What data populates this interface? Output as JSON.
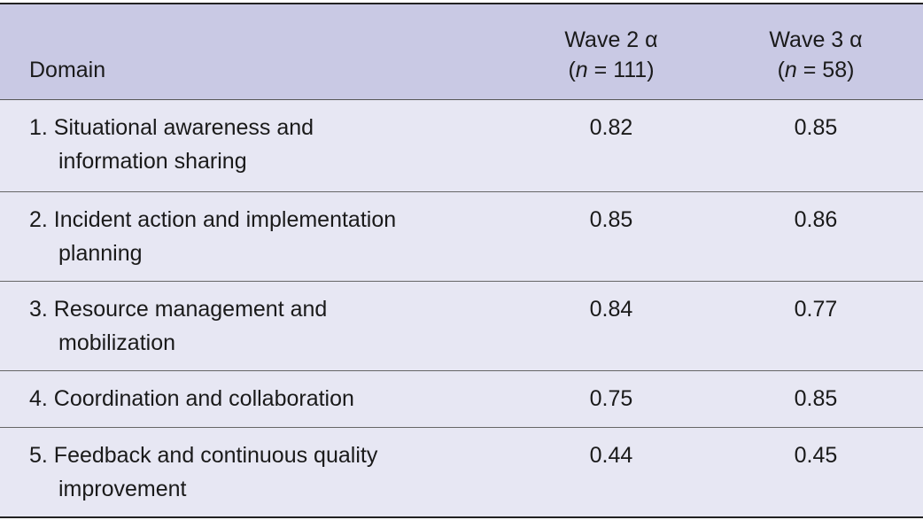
{
  "table": {
    "header": {
      "domain": "Domain",
      "wave2": {
        "line1": "Wave 2 α",
        "line2": [
          "(",
          "n",
          " = 111)"
        ]
      },
      "wave3": {
        "line1": "Wave 3 α",
        "line2": [
          "(",
          "n",
          " = 58)"
        ]
      }
    },
    "rows": [
      {
        "domain": [
          "1. Situational awareness and",
          "information sharing"
        ],
        "wave2": 0.82,
        "wave3": 0.85
      },
      {
        "domain": [
          "2. Incident action and implementation",
          "planning"
        ],
        "wave2": 0.85,
        "wave3": 0.86
      },
      {
        "domain": [
          "3. Resource management and",
          "mobilization"
        ],
        "wave2": 0.84,
        "wave3": 0.77
      },
      {
        "domain": [
          "4. Coordination and collaboration"
        ],
        "wave2": 0.75,
        "wave3": 0.85
      },
      {
        "domain": [
          "5. Feedback and continuous quality",
          "improvement"
        ],
        "wave2": 0.44,
        "wave3": 0.45
      }
    ]
  }
}
